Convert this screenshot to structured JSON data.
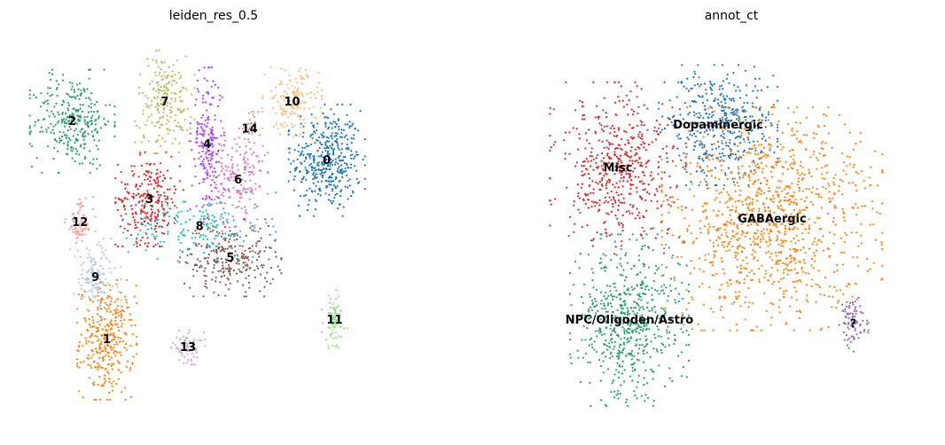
{
  "chart_data": [
    {
      "type": "scatter",
      "title": "leiden_res_0.5",
      "axes": "off",
      "grid": false,
      "legend": "on-data",
      "groups": [
        {
          "name": "0",
          "color": "#1f77b4",
          "center": [
            0.79,
            0.68
          ],
          "spread": [
            0.045,
            0.065
          ],
          "n": 420
        },
        {
          "name": "1",
          "color": "#ff7f0e",
          "center": [
            0.22,
            0.22
          ],
          "spread": [
            0.035,
            0.07
          ],
          "n": 330
        },
        {
          "name": "2",
          "color": "#279e68",
          "center": [
            0.13,
            0.78
          ],
          "spread": [
            0.05,
            0.06
          ],
          "n": 300
        },
        {
          "name": "3",
          "color": "#d62728",
          "center": [
            0.33,
            0.58
          ],
          "spread": [
            0.04,
            0.055
          ],
          "n": 260
        },
        {
          "name": "4",
          "color": "#aa40fc",
          "center": [
            0.48,
            0.72
          ],
          "spread": [
            0.02,
            0.09
          ],
          "n": 200
        },
        {
          "name": "5",
          "color": "#8c564b",
          "center": [
            0.54,
            0.43
          ],
          "spread": [
            0.06,
            0.045
          ],
          "n": 260
        },
        {
          "name": "6",
          "color": "#e377c2",
          "center": [
            0.56,
            0.63
          ],
          "spread": [
            0.035,
            0.06
          ],
          "n": 180
        },
        {
          "name": "7",
          "color": "#b5bd61",
          "center": [
            0.37,
            0.83
          ],
          "spread": [
            0.035,
            0.06
          ],
          "n": 210
        },
        {
          "name": "8",
          "color": "#17becf",
          "center": [
            0.46,
            0.51
          ],
          "spread": [
            0.09,
            0.04
          ],
          "n": 160
        },
        {
          "name": "9",
          "color": "#aec7e8",
          "center": [
            0.19,
            0.38
          ],
          "spread": [
            0.03,
            0.045
          ],
          "n": 130
        },
        {
          "name": "10",
          "color": "#ffbb78",
          "center": [
            0.7,
            0.83
          ],
          "spread": [
            0.035,
            0.04
          ],
          "n": 150
        },
        {
          "name": "11",
          "color": "#98df8a",
          "center": [
            0.81,
            0.27
          ],
          "spread": [
            0.015,
            0.035
          ],
          "n": 80
        },
        {
          "name": "12",
          "color": "#ff9896",
          "center": [
            0.15,
            0.52
          ],
          "spread": [
            0.018,
            0.03
          ],
          "n": 70
        },
        {
          "name": "13",
          "color": "#c5b0d5",
          "center": [
            0.43,
            0.2
          ],
          "spread": [
            0.02,
            0.02
          ],
          "n": 70
        },
        {
          "name": "14",
          "color": "#c49c94",
          "center": [
            0.59,
            0.76
          ],
          "spread": [
            0.012,
            0.02
          ],
          "n": 30
        }
      ]
    },
    {
      "type": "scatter",
      "title": "annot_ct",
      "axes": "off",
      "grid": false,
      "legend": "on-data",
      "groups": [
        {
          "name": "Dopaminergic",
          "color": "#1f77b4",
          "center": [
            0.46,
            0.77
          ],
          "spread": [
            0.07,
            0.07
          ],
          "n": 420
        },
        {
          "name": "Misc",
          "color": "#d62728",
          "center": [
            0.2,
            0.66
          ],
          "spread": [
            0.08,
            0.1
          ],
          "n": 520
        },
        {
          "name": "GABAergic",
          "color": "#ff7f0e",
          "center": [
            0.6,
            0.53
          ],
          "spread": [
            0.13,
            0.13
          ],
          "n": 1100
        },
        {
          "name": "NPC/Oligoden/Astro",
          "color": "#279e68",
          "center": [
            0.23,
            0.27
          ],
          "spread": [
            0.07,
            0.1
          ],
          "n": 600
        },
        {
          "name": "?",
          "color": "#9467bd",
          "center": [
            0.81,
            0.26
          ],
          "spread": [
            0.018,
            0.035
          ],
          "n": 80
        }
      ]
    }
  ]
}
